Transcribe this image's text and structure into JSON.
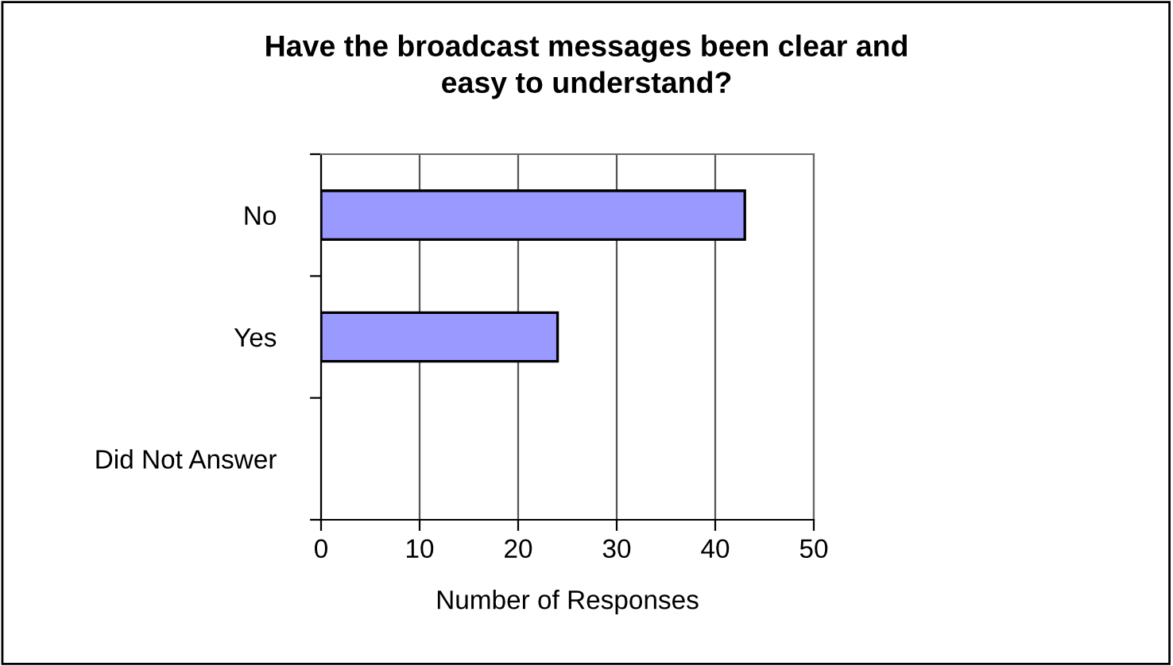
{
  "chart_data": {
    "type": "bar",
    "orientation": "horizontal",
    "title": "Have the broadcast messages been clear and\neasy to understand?",
    "xlabel": "Number of Responses",
    "categories": [
      "No",
      "Yes",
      "Did Not Answer"
    ],
    "values": [
      43,
      24,
      0
    ],
    "color": "#9999ff",
    "xlim": [
      0,
      50
    ],
    "xticks": [
      0,
      10,
      20,
      30,
      40,
      50
    ],
    "grid": "x"
  }
}
